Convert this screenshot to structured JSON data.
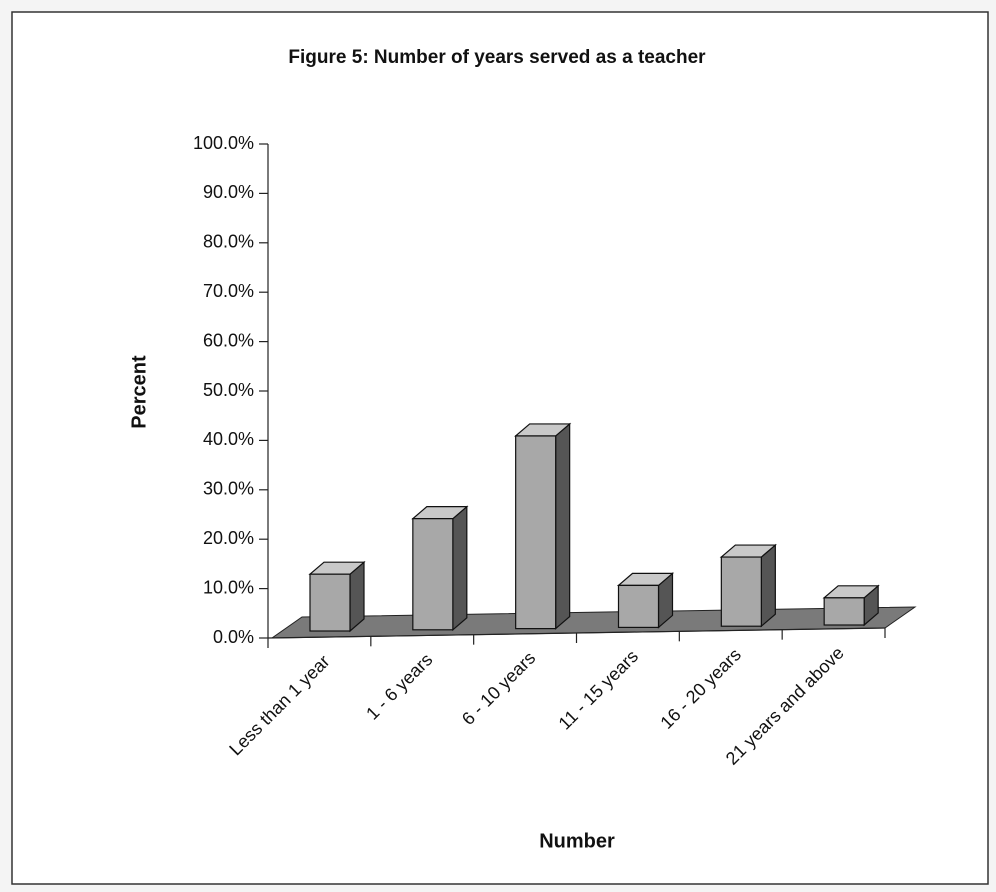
{
  "chart_data": {
    "type": "bar3d",
    "title": "Figure 5: Number of years served as a teacher",
    "x_label": "Number",
    "y_label": "Percent",
    "categories": [
      "Less than 1 year",
      "1 - 6 years",
      "6 - 10 years",
      "11 - 15 years",
      "16 - 20 years",
      "21 years and above"
    ],
    "values": [
      11.5,
      22.5,
      39,
      8.5,
      14,
      5.5
    ],
    "color": "#a8a8a8",
    "ylim": [
      0,
      100
    ],
    "yticks": [
      {
        "value": 0,
        "label": "0.0%"
      },
      {
        "value": 10,
        "label": "10.0%"
      },
      {
        "value": 20,
        "label": "20.0%"
      },
      {
        "value": 30,
        "label": "30.0%"
      },
      {
        "value": 40,
        "label": "40.0%"
      },
      {
        "value": 50,
        "label": "50.0%"
      },
      {
        "value": 60,
        "label": "60.0%"
      },
      {
        "value": 70,
        "label": "70.0%"
      },
      {
        "value": 80,
        "label": "80.0%"
      },
      {
        "value": 90,
        "label": "90.0%"
      },
      {
        "value": 100,
        "label": "100.0%"
      }
    ]
  }
}
